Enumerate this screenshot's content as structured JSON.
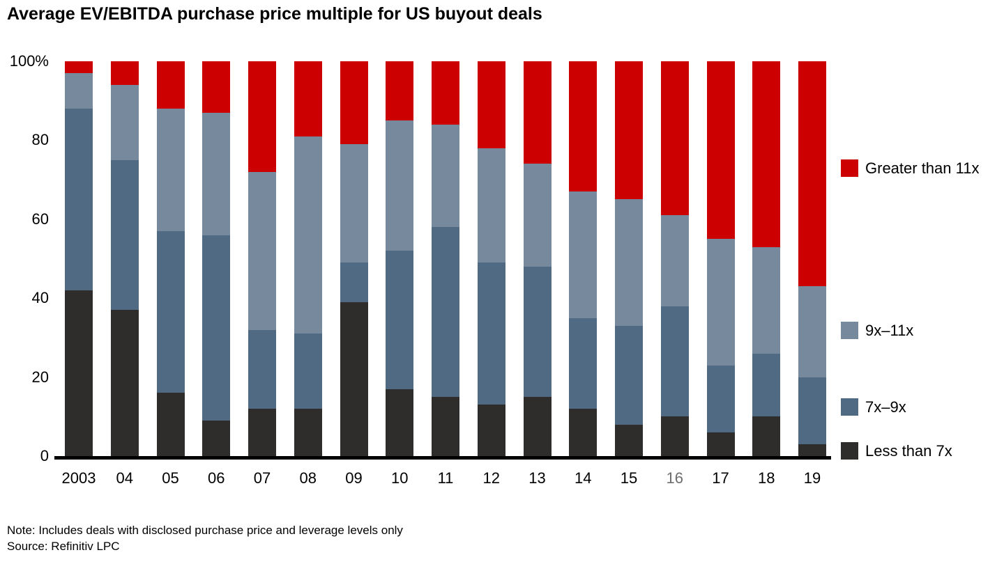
{
  "title": "Average EV/EBITDA purchase price multiple for US buyout deals",
  "note": "Note: Includes deals with disclosed purchase price and leverage levels only",
  "source": "Source: Refinitiv LPC",
  "colors": {
    "lt7": "#2e2d2c",
    "x7_9": "#4f6a82",
    "x9_11": "#76899d",
    "gt11": "#cc0000"
  },
  "chart_data": {
    "type": "bar",
    "stacked": true,
    "unit": "%",
    "title": "Average EV/EBITDA purchase price multiple for US buyout deals",
    "xlabel": "",
    "ylabel": "",
    "ylim": [
      0,
      100
    ],
    "grid": false,
    "legend_position": "right",
    "y_ticks": [
      "100%",
      "80",
      "60",
      "40",
      "20",
      "0"
    ],
    "categories": [
      "2003",
      "04",
      "05",
      "06",
      "07",
      "08",
      "09",
      "10",
      "11",
      "12",
      "13",
      "14",
      "15",
      "16",
      "17",
      "18",
      "19"
    ],
    "muted_tick": "16",
    "series": [
      {
        "name": "Less than 7x",
        "color_key": "lt7",
        "values": [
          42,
          37,
          16,
          9,
          12,
          12,
          39,
          17,
          15,
          13,
          15,
          12,
          8,
          10,
          6,
          10,
          3
        ]
      },
      {
        "name": "7x–9x",
        "color_key": "x7_9",
        "values": [
          46,
          38,
          41,
          47,
          20,
          19,
          10,
          35,
          43,
          36,
          33,
          23,
          25,
          28,
          17,
          16,
          17
        ]
      },
      {
        "name": "9x–11x",
        "color_key": "x9_11",
        "values": [
          9,
          19,
          31,
          31,
          40,
          50,
          30,
          33,
          26,
          29,
          26,
          32,
          32,
          23,
          32,
          27,
          23
        ]
      },
      {
        "name": "Greater than 11x",
        "color_key": "gt11",
        "values": [
          3,
          6,
          12,
          13,
          28,
          19,
          21,
          15,
          16,
          22,
          26,
          33,
          35,
          39,
          45,
          47,
          57
        ]
      }
    ]
  },
  "legend": {
    "items_top_to_bottom": [
      "Greater than 11x",
      "9x–11x",
      "7x–9x",
      "Less than 7x"
    ]
  }
}
